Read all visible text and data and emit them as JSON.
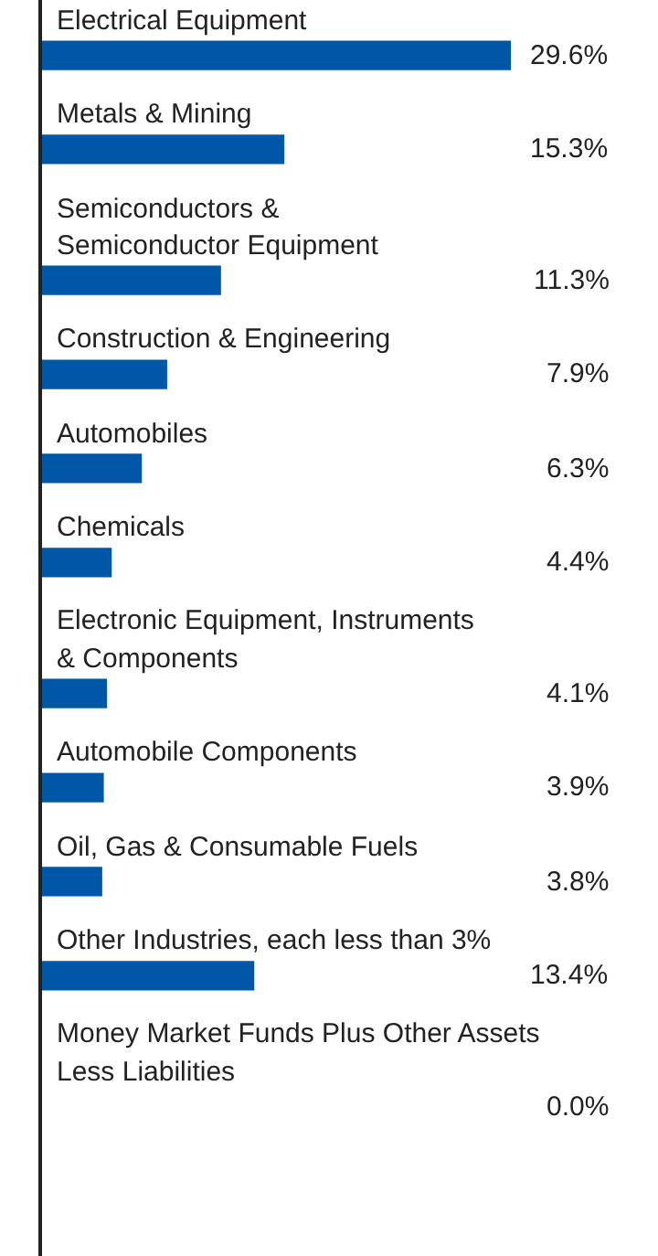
{
  "chart_data": {
    "type": "bar",
    "orientation": "horizontal",
    "categories": [
      "Electrical Equipment",
      "Metals & Mining",
      "Semiconductors &\nSemiconductor Equipment",
      "Construction & Engineering",
      "Automobiles",
      "Chemicals",
      "Electronic Equipment, Instruments\n& Components",
      "Automobile Components",
      "Oil, Gas & Consumable Fuels",
      "Other Industries, each less than 3%",
      "Money Market Funds Plus Other Assets\nLess Liabilities"
    ],
    "values": [
      29.6,
      15.3,
      11.3,
      7.9,
      6.3,
      4.4,
      4.1,
      3.9,
      3.8,
      13.4,
      0.0
    ],
    "value_labels": [
      "29.6%",
      "15.3%",
      "11.3%",
      "7.9%",
      "6.3%",
      "4.4%",
      "4.1%",
      "3.9%",
      "3.8%",
      "13.4%",
      "0.0%"
    ],
    "color": "#0057a8",
    "grid": false,
    "legend": false
  }
}
